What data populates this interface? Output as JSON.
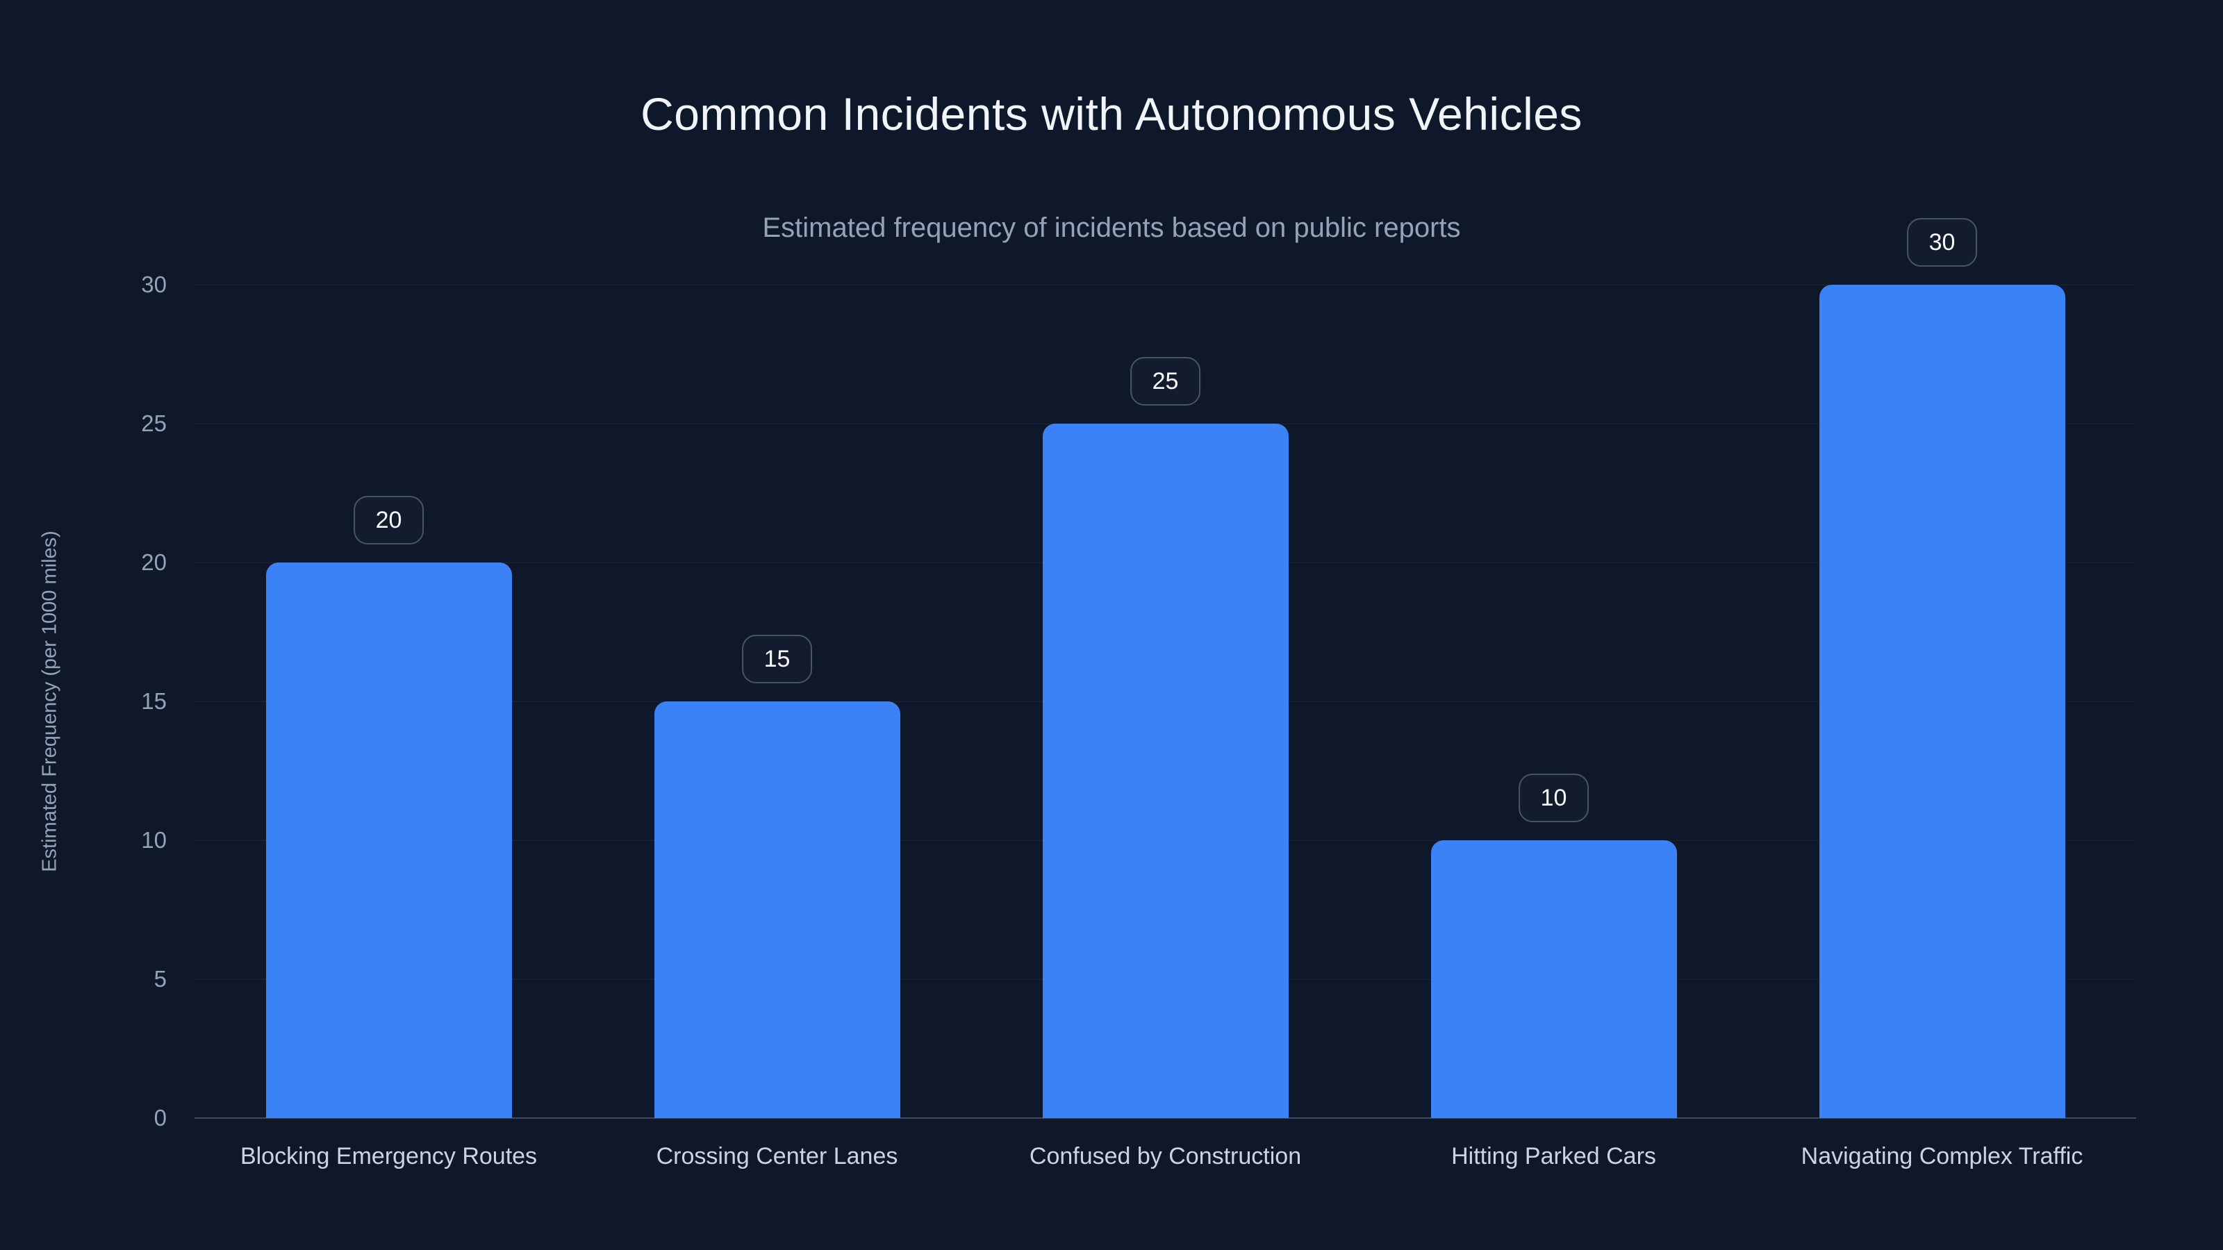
{
  "chart_data": {
    "type": "bar",
    "title": "Common Incidents with Autonomous Vehicles",
    "subtitle": "Estimated frequency of incidents based on public reports",
    "xlabel": "",
    "ylabel": "Estimated Frequency (per 1000 miles)",
    "categories": [
      "Blocking Emergency Routes",
      "Crossing Center Lanes",
      "Confused by Construction",
      "Hitting Parked Cars",
      "Navigating Complex Traffic"
    ],
    "values": [
      20,
      15,
      25,
      10,
      30
    ],
    "value_labels": [
      "20",
      "15",
      "25",
      "10",
      "30"
    ],
    "yticks": [
      0,
      5,
      10,
      15,
      20,
      25,
      30
    ],
    "ylim": [
      0,
      30
    ],
    "grid": "horizontal",
    "legend": "none",
    "bar_color": "#3b82f6"
  },
  "colors": {
    "background": "#0f172a",
    "title_text": "#f1f5f9",
    "subtitle_text": "#94a3b8",
    "axis_tick_text": "#94a3b8",
    "category_text": "#cbd5e1",
    "badge_border": "#475569",
    "badge_text": "#f8fafc",
    "gridline": "rgba(148,163,184,0.10)",
    "baseline": "rgba(148,163,184,0.35)"
  }
}
